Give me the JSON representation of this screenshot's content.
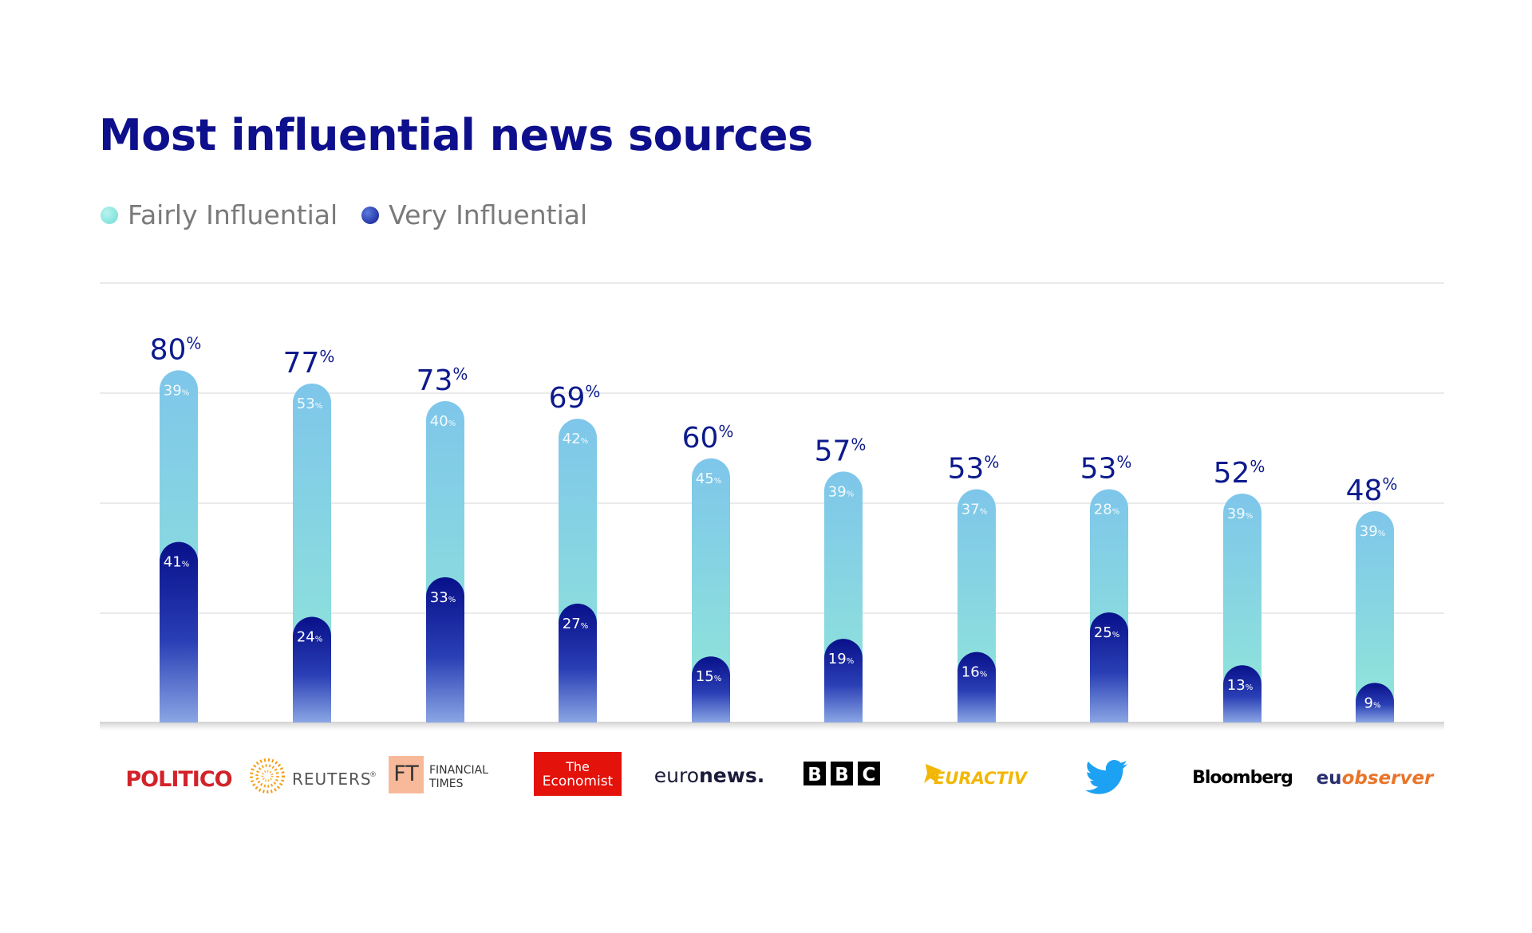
{
  "colors": {
    "title": "#0d0f8c",
    "label": "#0d1a8c",
    "fairly_top": "#7ecbe8",
    "fairly_bottom": "#8ee3da",
    "very_top": "#0a138a",
    "very_bottom": "#7e9ae0",
    "grid": "#e6e6e6"
  },
  "chart_data": {
    "type": "bar",
    "stacked": true,
    "title": "Most influential news sources",
    "ylim": [
      0,
      100
    ],
    "unit": "%",
    "legend": [
      "Fairly Influential",
      "Very Influential"
    ],
    "categories": [
      "POLITICO",
      "REUTERS",
      "FINANCIAL TIMES",
      "The Economist",
      "euronews.",
      "BBC",
      "EURACTIV",
      "Twitter",
      "Bloomberg",
      "euobserver"
    ],
    "series": [
      {
        "name": "Very Influential",
        "values": [
          41,
          24,
          33,
          27,
          15,
          19,
          16,
          25,
          13,
          9
        ]
      },
      {
        "name": "Fairly Influential",
        "values": [
          39,
          53,
          40,
          42,
          45,
          39,
          37,
          28,
          39,
          39
        ]
      }
    ],
    "totals": [
      80,
      77,
      73,
      69,
      60,
      57,
      53,
      53,
      52,
      48
    ]
  },
  "logos": {
    "politico": "POLITICO",
    "reuters": "REUTERS",
    "reuters_mark": "®",
    "ft_mark": "FT",
    "ft_line1": "FINANCIAL",
    "ft_line2": "TIMES",
    "economist_line1": "The",
    "economist_line2": "Economist",
    "euronews_a": "euro",
    "euronews_b": "news.",
    "bbc_letters": [
      "B",
      "B",
      "C"
    ],
    "euractiv": "EURACTIV",
    "bloomberg": "Bloomberg",
    "euobserver_a": "eu",
    "euobserver_b": "observer"
  }
}
